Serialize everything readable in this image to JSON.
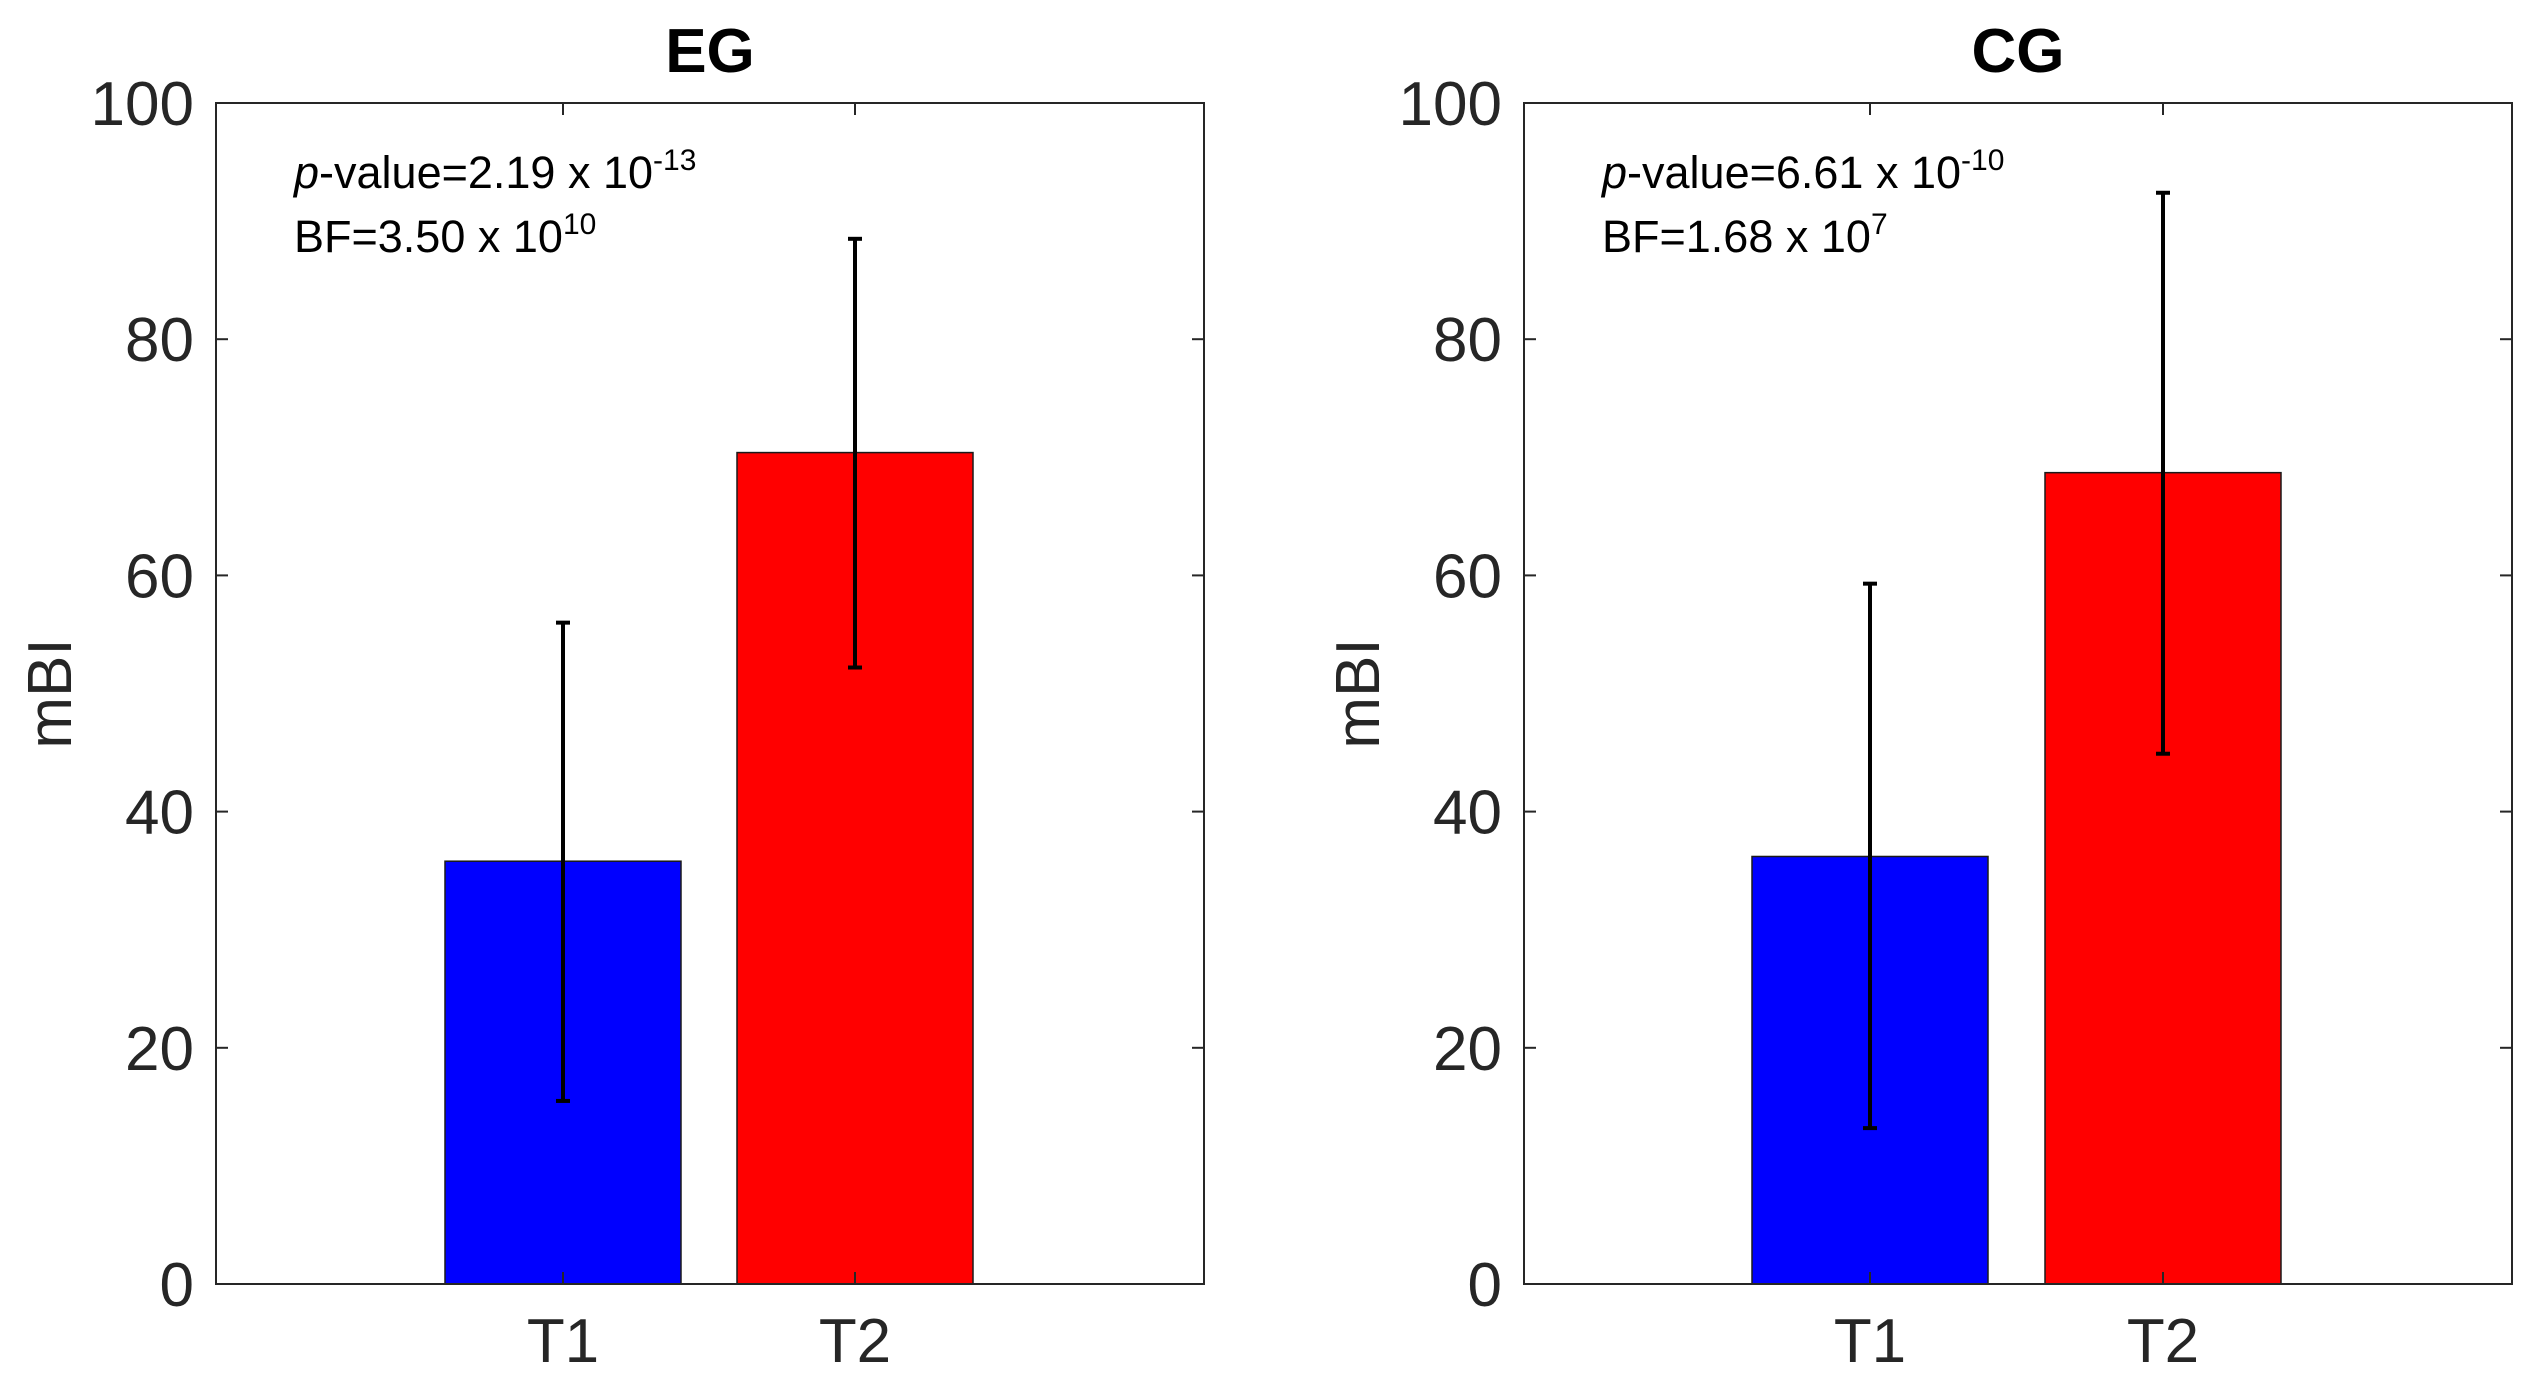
{
  "chart_data": [
    {
      "type": "bar",
      "title": "EG",
      "xlabel": "",
      "ylabel": "mBI",
      "ylim": [
        0,
        100
      ],
      "yticks": [
        0,
        20,
        40,
        60,
        80,
        100
      ],
      "categories": [
        "T1",
        "T2"
      ],
      "values": [
        35.8,
        70.4
      ],
      "error_low": [
        15.5,
        52.2
      ],
      "error_high": [
        56.0,
        88.5
      ],
      "colors": [
        "#0000ff",
        "#ff0000"
      ],
      "annotations": {
        "pvalue_italic": "p",
        "pvalue_text": "-value=2.19  x 10",
        "pvalue_exp": "-13",
        "bf_text": "BF=3.50 x 10",
        "bf_exp": "10"
      }
    },
    {
      "type": "bar",
      "title": "CG",
      "xlabel": "",
      "ylabel": "mBI",
      "ylim": [
        0,
        100
      ],
      "yticks": [
        0,
        20,
        40,
        60,
        80,
        100
      ],
      "categories": [
        "T1",
        "T2"
      ],
      "values": [
        36.2,
        68.7
      ],
      "error_low": [
        13.2,
        44.9
      ],
      "error_high": [
        59.3,
        92.4
      ],
      "colors": [
        "#0000ff",
        "#ff0000"
      ],
      "annotations": {
        "pvalue_italic": "p",
        "pvalue_text": "-value=6.61  x 10",
        "pvalue_exp": "-10",
        "bf_text": "BF=1.68 x 10",
        "bf_exp": "7"
      }
    }
  ]
}
